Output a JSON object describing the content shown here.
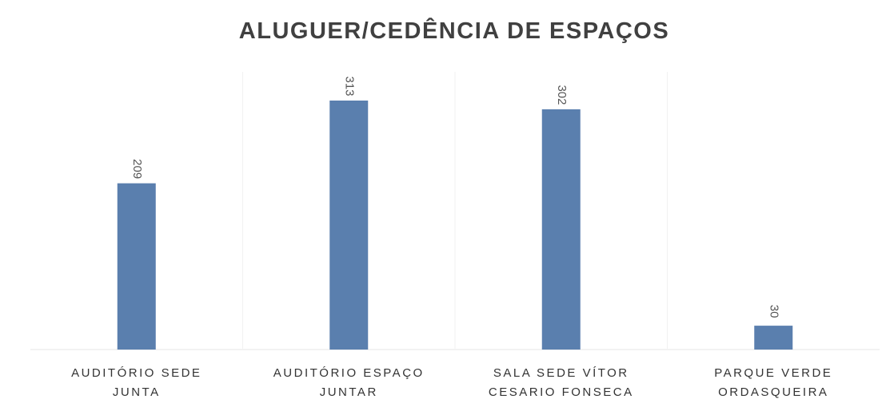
{
  "chart_data": {
    "type": "bar",
    "title": "ALUGUER/CEDÊNCIA DE ESPAÇOS",
    "categories": [
      "AUDITÓRIO SEDE JUNTA",
      "AUDITÓRIO ESPAÇO JUNTAR",
      "SALA SEDE VÍTOR CESARIO FONSECA",
      "PARQUE VERDE ORDASQUEIRA"
    ],
    "values": [
      209,
      313,
      302,
      30
    ],
    "color": "#5a7fae"
  }
}
